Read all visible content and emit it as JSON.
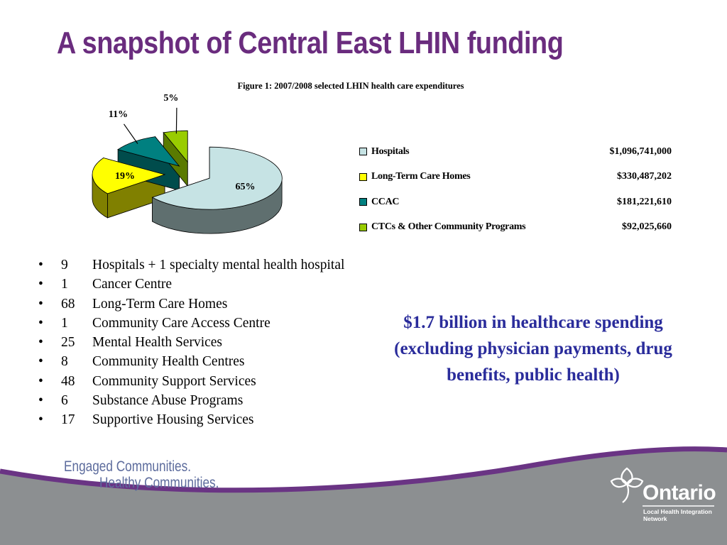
{
  "slide": {
    "title": "A snapshot of Central East LHIN funding",
    "callout": "$1.7 billion in healthcare spending (excluding physician payments, drug benefits, public health)"
  },
  "bullets": [
    {
      "count": "9",
      "text": "Hospitals + 1 specialty mental health hospital"
    },
    {
      "count": "1",
      "text": "Cancer Centre"
    },
    {
      "count": "68",
      "text": "Long-Term Care Homes"
    },
    {
      "count": "1",
      "text": "Community Care Access Centre"
    },
    {
      "count": "25",
      "text": "Mental Health Services"
    },
    {
      "count": "8",
      "text": "Community Health Centres"
    },
    {
      "count": "48",
      "text": "Community Support Services"
    },
    {
      "count": "6",
      "text": "Substance Abuse Programs"
    },
    {
      "count": "17",
      "text": "Supportive Housing Services"
    }
  ],
  "bullet_symbol": "•",
  "footer": {
    "tagline_line1": "Engaged Communities.",
    "tagline_line2": "Healthy Communities.",
    "logo_word": "Ontario",
    "logo_sub_line1": "Local Health Integration",
    "logo_sub_line2": "Network"
  },
  "colors": {
    "title": "#6a2c7e",
    "callout": "#2a2c9b",
    "footer_band": "#8c8f91",
    "footer_swoosh": "#6a3484"
  },
  "chart_data": {
    "type": "pie",
    "title": "Figure 1: 2007/2008 selected LHIN health care expenditures",
    "style": "3d-exploded",
    "legend_position": "right",
    "categories": [
      "Hospitals",
      "Long-Term Care Homes",
      "CCAC",
      "CTCs & Other Community Programs"
    ],
    "values": [
      1096741000,
      330487202,
      181221610,
      92025660
    ],
    "value_labels": [
      "$1,096,741,000",
      "$330,487,202",
      "$181,221,610",
      "$92,025,660"
    ],
    "percent_labels": [
      "65%",
      "19%",
      "11%",
      "5%"
    ],
    "colors": [
      "#c6e3e4",
      "#ffff00",
      "#008080",
      "#99cc00"
    ],
    "side_colors": [
      "#5f6f6f",
      "#808000",
      "#004c4c",
      "#5a7a00"
    ]
  }
}
